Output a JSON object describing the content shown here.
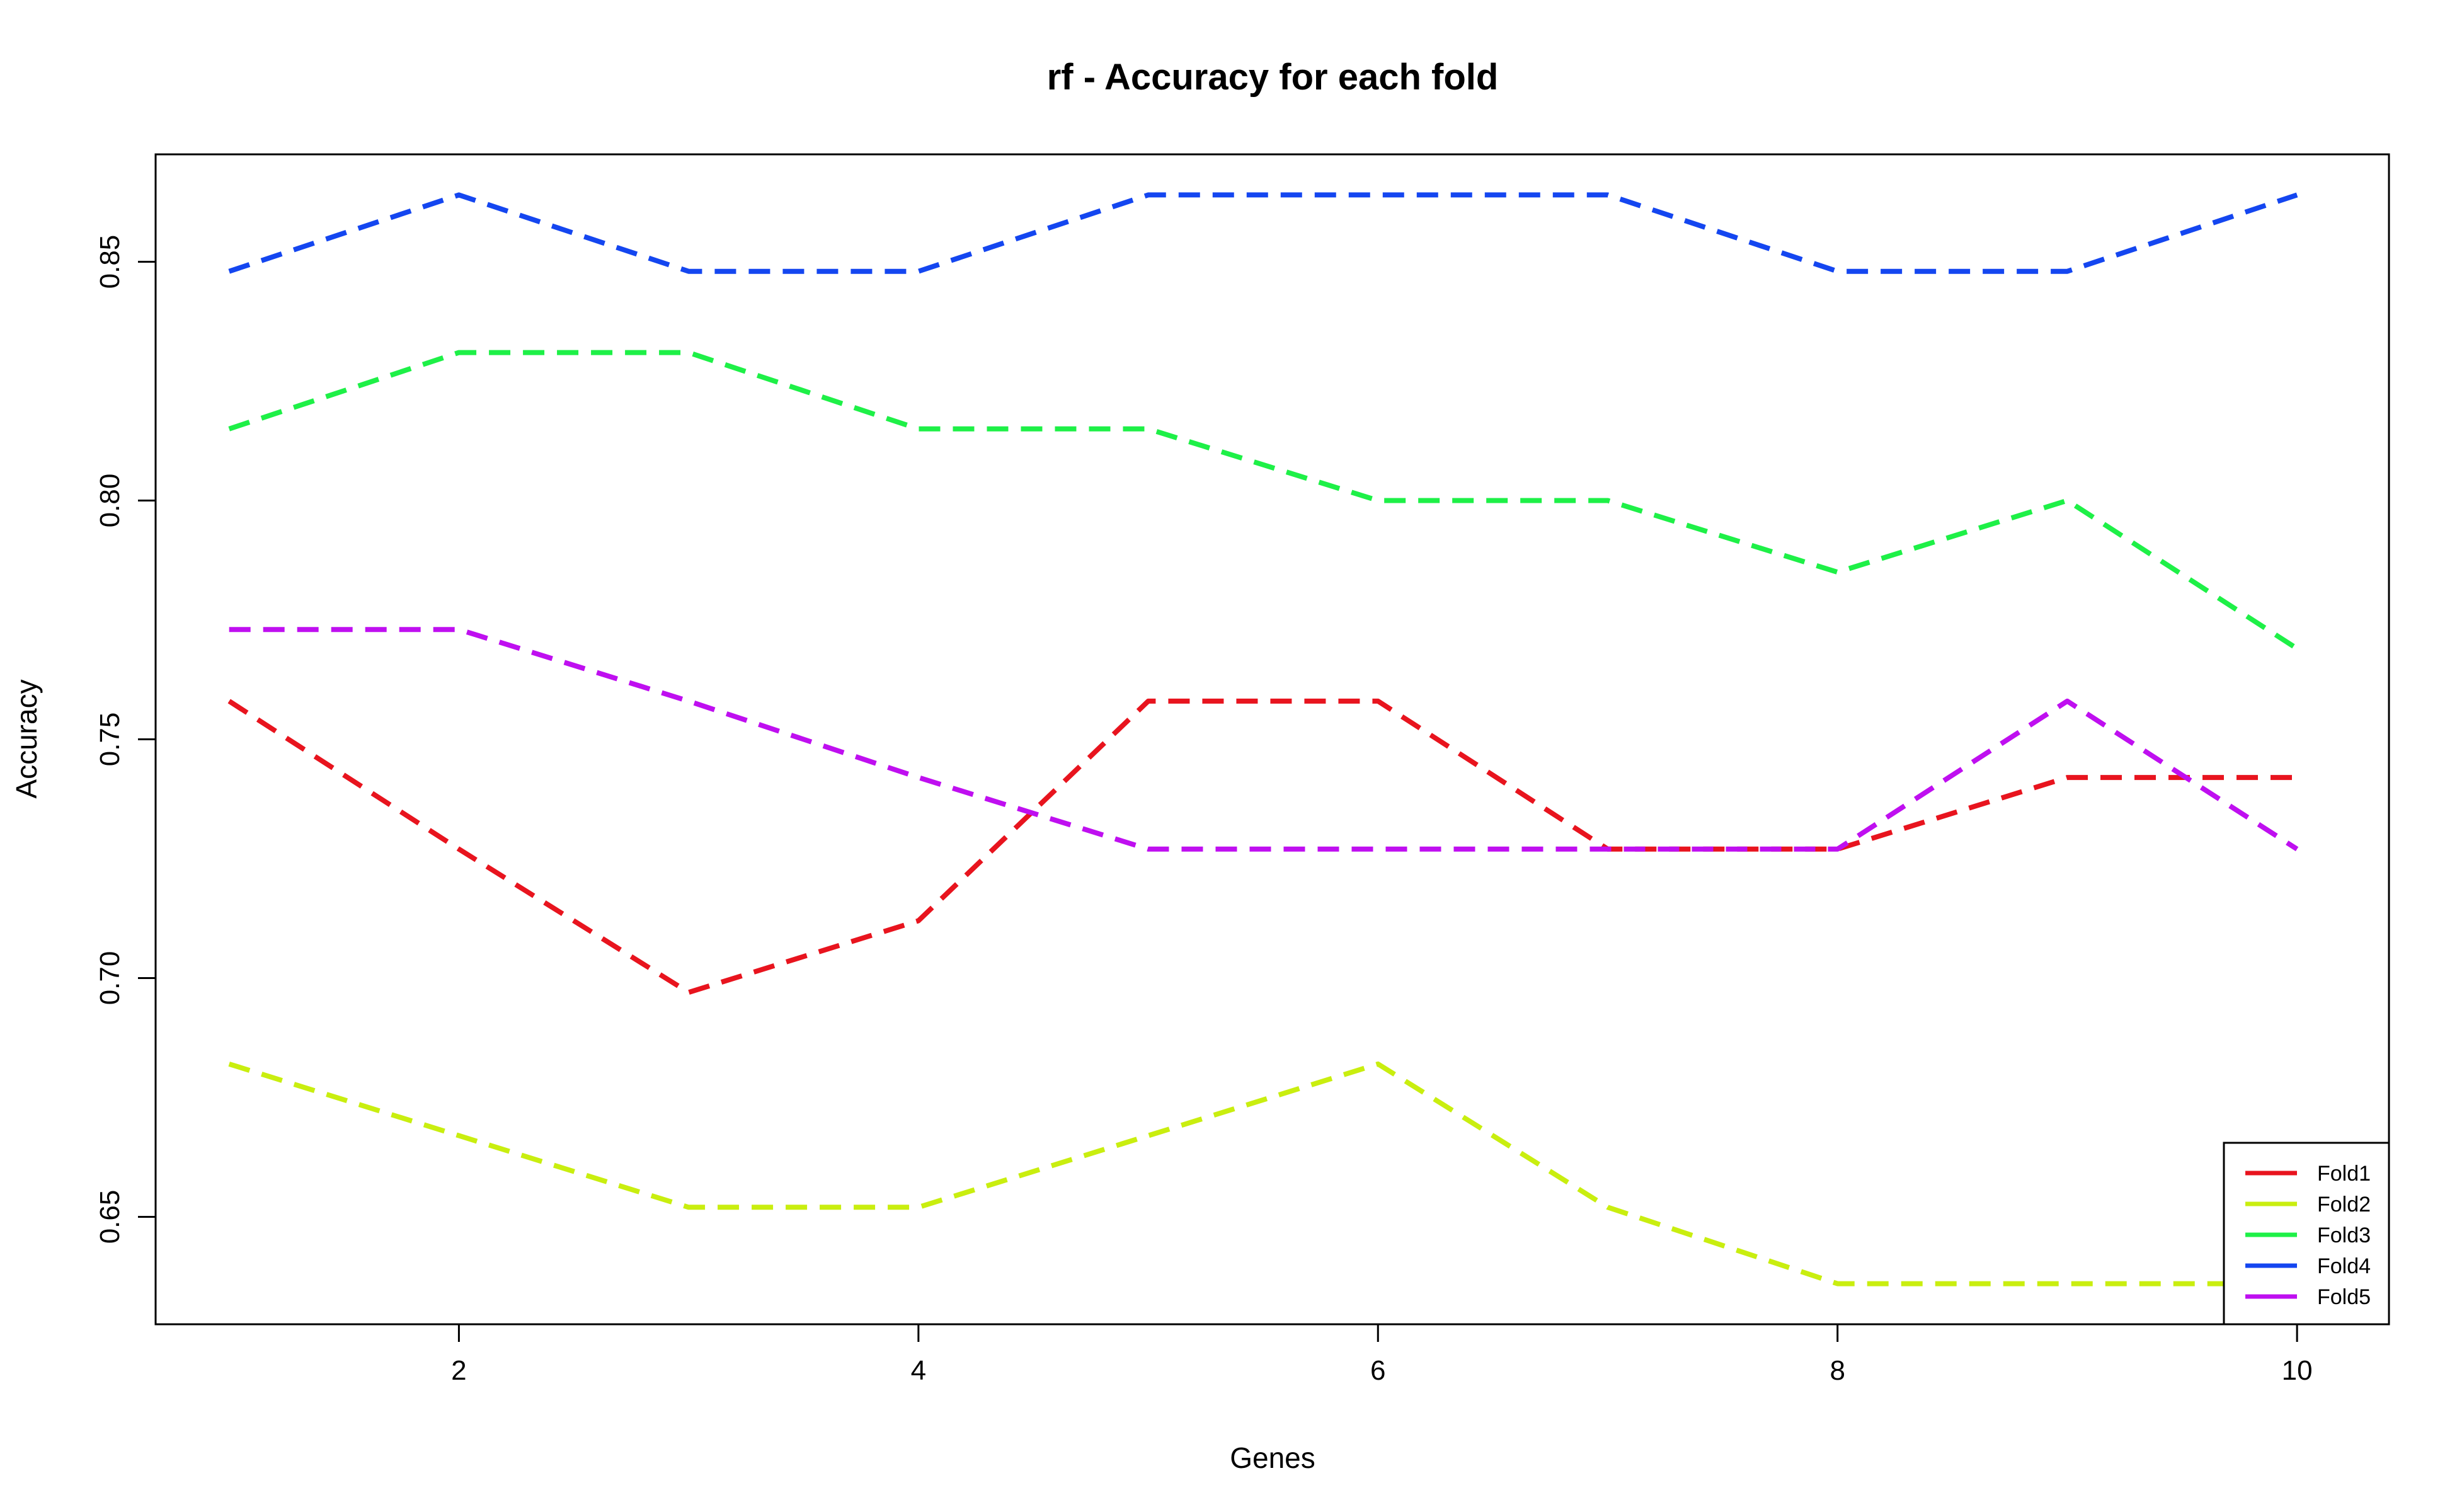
{
  "chart_data": {
    "type": "line",
    "title": "rf - Accuracy for each fold",
    "xlabel": "Genes",
    "ylabel": "Accuracy",
    "x": [
      1,
      2,
      3,
      4,
      5,
      6,
      7,
      8,
      9,
      10
    ],
    "xlim": [
      0.68,
      10.4
    ],
    "ylim": [
      0.6275,
      0.8725
    ],
    "xticks": [
      2,
      4,
      6,
      8,
      10
    ],
    "yticks": [
      0.65,
      0.7,
      0.75,
      0.8,
      0.85
    ],
    "ytick_labels": [
      "0.65",
      "0.70",
      "0.75",
      "0.80",
      "0.85"
    ],
    "xtick_labels": [
      "2",
      "4",
      "6",
      "8",
      "10"
    ],
    "grid": false,
    "legend_position": "bottom-right",
    "line_style": "dashed",
    "series": [
      {
        "name": "Fold1",
        "color": "#e8141e",
        "values": [
          0.758,
          0.727,
          0.697,
          0.712,
          0.758,
          0.758,
          0.727,
          0.727,
          0.742,
          0.742
        ]
      },
      {
        "name": "Fold2",
        "color": "#c9ee0f",
        "values": [
          0.682,
          0.667,
          0.652,
          0.652,
          0.667,
          0.682,
          0.652,
          0.636,
          0.636,
          0.636
        ]
      },
      {
        "name": "Fold3",
        "color": "#1ef047",
        "values": [
          0.815,
          0.831,
          0.831,
          0.815,
          0.815,
          0.8,
          0.8,
          0.785,
          0.8,
          0.769
        ]
      },
      {
        "name": "Fold4",
        "color": "#1446f0",
        "values": [
          0.848,
          0.864,
          0.848,
          0.848,
          0.864,
          0.864,
          0.864,
          0.848,
          0.848,
          0.864
        ]
      },
      {
        "name": "Fold5",
        "color": "#bf0ff0",
        "values": [
          0.773,
          0.773,
          0.758,
          0.742,
          0.727,
          0.727,
          0.727,
          0.727,
          0.758,
          0.727
        ]
      }
    ]
  }
}
